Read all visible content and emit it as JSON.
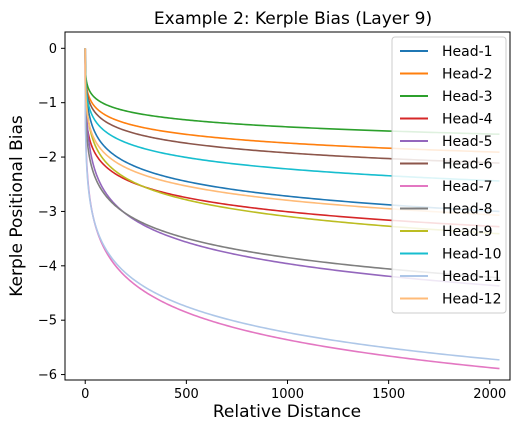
{
  "chart_data": {
    "type": "line",
    "title": "Example 2: Kerple Bias (Layer 9)",
    "xlabel": "Relative Distance",
    "ylabel": "Kerple Positional Bias",
    "xlim": [
      -100,
      2100
    ],
    "ylim": [
      -6.1,
      0.3
    ],
    "x_ticks": [
      0,
      500,
      1000,
      1500,
      2000
    ],
    "y_ticks": [
      0,
      -1,
      -2,
      -3,
      -4,
      -5,
      -6
    ],
    "x_tick_labels": [
      "0",
      "500",
      "1000",
      "1500",
      "2000"
    ],
    "y_tick_labels": [
      "0",
      "−1",
      "−2",
      "−3",
      "−4",
      "−5",
      "−6"
    ],
    "grid": false,
    "legend_position": "top-right",
    "x_max": 2048,
    "series": [
      {
        "name": "Head-1",
        "color": "#1f77b4",
        "a": 0.157,
        "b": 0.4,
        "points": [
          [
            0,
            0
          ],
          [
            50,
            -0.81
          ],
          [
            250,
            -1.43
          ],
          [
            500,
            -1.84
          ],
          [
            1000,
            -2.35
          ],
          [
            1500,
            -2.7
          ],
          [
            2048,
            -3.0
          ]
        ]
      },
      {
        "name": "Head-2",
        "color": "#ff7f0e",
        "a": 0.42,
        "b": 0.2,
        "points": [
          [
            0,
            0
          ],
          [
            50,
            -0.92
          ],
          [
            250,
            -1.26
          ],
          [
            500,
            -1.44
          ],
          [
            1000,
            -1.65
          ],
          [
            1500,
            -1.79
          ],
          [
            2048,
            -1.91
          ]
        ]
      },
      {
        "name": "Head-3",
        "color": "#2ca02c",
        "a": 0.4,
        "b": 0.18,
        "points": [
          [
            0,
            0
          ],
          [
            50,
            -0.81
          ],
          [
            250,
            -1.08
          ],
          [
            500,
            -1.22
          ],
          [
            1000,
            -1.39
          ],
          [
            1500,
            -1.49
          ],
          [
            2048,
            -1.58
          ]
        ]
      },
      {
        "name": "Head-4",
        "color": "#d62728",
        "a": 0.92,
        "b": 0.166,
        "points": [
          [
            0,
            0
          ],
          [
            50,
            -1.76
          ],
          [
            250,
            -2.3
          ],
          [
            500,
            -2.58
          ],
          [
            1000,
            -2.91
          ],
          [
            1500,
            -3.12
          ],
          [
            2048,
            -3.28
          ]
        ]
      },
      {
        "name": "Head-5",
        "color": "#9467bd",
        "a": 0.2,
        "b": 0.436,
        "points": [
          [
            0,
            0
          ],
          [
            50,
            -1.1
          ],
          [
            250,
            -2.03
          ],
          [
            500,
            -2.65
          ],
          [
            1000,
            -3.4
          ],
          [
            1500,
            -3.92
          ],
          [
            2048,
            -4.37
          ]
        ]
      },
      {
        "name": "Head-6",
        "color": "#8c564b",
        "a": 0.43,
        "b": 0.21,
        "points": [
          [
            0,
            0
          ],
          [
            50,
            -0.98
          ],
          [
            250,
            -1.37
          ],
          [
            500,
            -1.58
          ],
          [
            1000,
            -1.82
          ],
          [
            1500,
            -1.98
          ],
          [
            2048,
            -2.11
          ]
        ]
      },
      {
        "name": "Head-7",
        "color": "#e377c2",
        "a": 1.4,
        "b": 0.228,
        "points": [
          [
            0,
            0
          ],
          [
            50,
            -3.09
          ],
          [
            250,
            -4.1
          ],
          [
            500,
            -4.6
          ],
          [
            1000,
            -5.22
          ],
          [
            1500,
            -5.61
          ],
          [
            2048,
            -5.89
          ]
        ]
      },
      {
        "name": "Head-8",
        "color": "#7f7f7f",
        "a": 1.0,
        "b": 0.204,
        "points": [
          [
            0,
            0
          ],
          [
            50,
            -2.18
          ],
          [
            250,
            -2.93
          ],
          [
            500,
            -3.25
          ],
          [
            1000,
            -3.72
          ],
          [
            1500,
            -4.0
          ],
          [
            2048,
            -4.22
          ]
        ]
      },
      {
        "name": "Head-9",
        "color": "#bcbd22",
        "a": 0.3,
        "b": 0.34,
        "points": [
          [
            0,
            0
          ],
          [
            50,
            -1.13
          ],
          [
            250,
            -1.86
          ],
          [
            500,
            -2.26
          ],
          [
            1000,
            -2.77
          ],
          [
            1500,
            -3.11
          ],
          [
            2048,
            -3.41
          ]
        ]
      },
      {
        "name": "Head-10",
        "color": "#17becf",
        "a": 0.4,
        "b": 0.243,
        "points": [
          [
            0,
            0
          ],
          [
            50,
            -1.01
          ],
          [
            250,
            -1.5
          ],
          [
            500,
            -1.76
          ],
          [
            1000,
            -2.07
          ],
          [
            1500,
            -2.27
          ],
          [
            2048,
            -2.44
          ]
        ]
      },
      {
        "name": "Head-11",
        "color": "#aec7e8",
        "a": 1.55,
        "b": 0.2,
        "points": [
          [
            0,
            0
          ],
          [
            50,
            -3.07
          ],
          [
            250,
            -4.11
          ],
          [
            500,
            -4.6
          ],
          [
            1000,
            -5.1
          ],
          [
            1500,
            -5.44
          ],
          [
            2048,
            -5.73
          ]
        ]
      },
      {
        "name": "Head-12",
        "color": "#ffbb78",
        "a": 0.58,
        "b": 0.223,
        "points": [
          [
            0,
            0
          ],
          [
            50,
            -1.38
          ],
          [
            250,
            -1.96
          ],
          [
            500,
            -2.27
          ],
          [
            1000,
            -2.64
          ],
          [
            1500,
            -2.88
          ],
          [
            2048,
            -3.07
          ]
        ]
      }
    ]
  }
}
